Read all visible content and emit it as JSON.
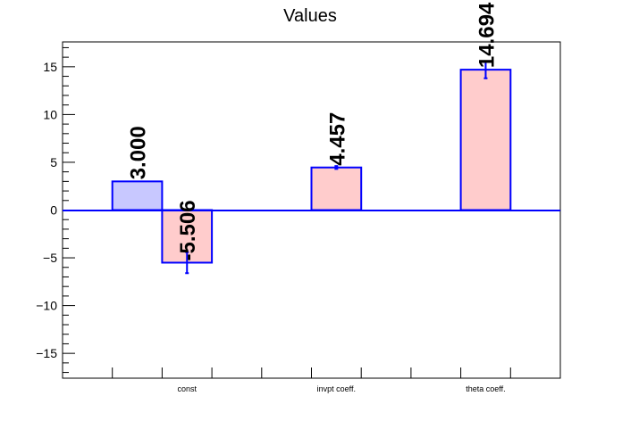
{
  "chart_data": {
    "type": "bar",
    "title": "Values",
    "xlabel": "",
    "ylabel": "",
    "ylim": [
      -17.6,
      17.6
    ],
    "yticks": [
      -15,
      -10,
      -5,
      0,
      5,
      10,
      15
    ],
    "grid": false,
    "legend": "none",
    "category_labels": [
      "const",
      "invpt coeff.",
      "theta coeff."
    ],
    "series": [
      {
        "color": "#c8c8ff",
        "stroke": "#0000ff",
        "bars": [
          {
            "slot": 1,
            "value": 3.0,
            "error": 0.0,
            "label": "3.000"
          }
        ]
      },
      {
        "color": "#ffcccc",
        "stroke": "#0000ff",
        "bars": [
          {
            "slot": 2,
            "value": -5.506,
            "error": 1.1,
            "label": "-5.506"
          },
          {
            "slot": 5,
            "value": 4.457,
            "error": 0.15,
            "label": "4.457"
          },
          {
            "slot": 8,
            "value": 14.694,
            "error": 0.9,
            "label": "14.694"
          }
        ]
      }
    ],
    "category_slots": [
      2,
      5,
      8
    ],
    "slot_count": 10
  }
}
